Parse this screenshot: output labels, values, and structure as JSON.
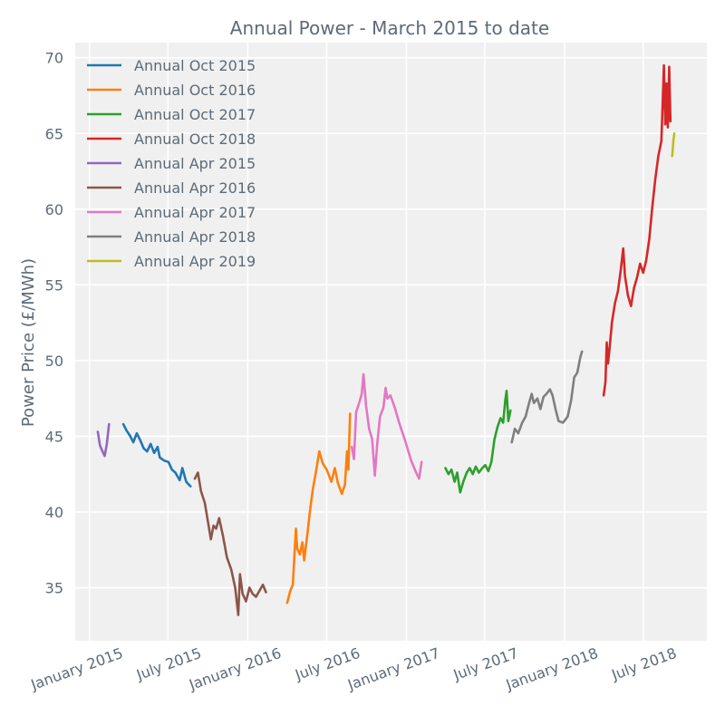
{
  "chart_data": {
    "type": "line",
    "title": "Annual Power - March 2015 to date",
    "xlabel": "",
    "ylabel": "Power Price (£/MWh)",
    "ylim": [
      31.5,
      71.0
    ],
    "xlim": [
      "2014-11-29",
      "2018-11-25"
    ],
    "grid": true,
    "legend_position": "top-left",
    "y_ticks": [
      35,
      40,
      45,
      50,
      55,
      60,
      65,
      70
    ],
    "x_ticks": [
      {
        "date": "2015-01-01",
        "label": "January 2015"
      },
      {
        "date": "2015-07-01",
        "label": "July 2015"
      },
      {
        "date": "2016-01-01",
        "label": "January 2016"
      },
      {
        "date": "2016-07-01",
        "label": "July 2016"
      },
      {
        "date": "2017-01-01",
        "label": "January 2017"
      },
      {
        "date": "2017-07-01",
        "label": "July 2017"
      },
      {
        "date": "2018-01-01",
        "label": "January 2018"
      },
      {
        "date": "2018-07-01",
        "label": "July 2018"
      }
    ],
    "series": [
      {
        "name": "Annual Oct 2015",
        "color": "#1f77b4",
        "points": [
          [
            "2015-03-20",
            45.8
          ],
          [
            "2015-03-27",
            45.4
          ],
          [
            "2015-04-05",
            45.0
          ],
          [
            "2015-04-12",
            44.6
          ],
          [
            "2015-04-20",
            45.2
          ],
          [
            "2015-04-27",
            44.8
          ],
          [
            "2015-05-06",
            44.2
          ],
          [
            "2015-05-14",
            44.0
          ],
          [
            "2015-05-22",
            44.5
          ],
          [
            "2015-05-30",
            43.9
          ],
          [
            "2015-06-07",
            44.3
          ],
          [
            "2015-06-12",
            43.6
          ],
          [
            "2015-06-22",
            43.4
          ],
          [
            "2015-07-02",
            43.3
          ],
          [
            "2015-07-10",
            42.8
          ],
          [
            "2015-07-18",
            42.6
          ],
          [
            "2015-07-28",
            42.1
          ],
          [
            "2015-08-03",
            42.9
          ],
          [
            "2015-08-12",
            42.0
          ],
          [
            "2015-08-22",
            41.7
          ]
        ]
      },
      {
        "name": "Annual Oct 2016",
        "color": "#ff7f0e",
        "points": [
          [
            "2016-04-01",
            34.0
          ],
          [
            "2016-04-08",
            34.8
          ],
          [
            "2016-04-14",
            35.2
          ],
          [
            "2016-04-21",
            38.9
          ],
          [
            "2016-04-24",
            37.6
          ],
          [
            "2016-04-30",
            37.2
          ],
          [
            "2016-05-06",
            38.0
          ],
          [
            "2016-05-10",
            36.8
          ],
          [
            "2016-05-16",
            38.2
          ],
          [
            "2016-05-24",
            40.2
          ],
          [
            "2016-05-30",
            41.5
          ],
          [
            "2016-06-06",
            42.6
          ],
          [
            "2016-06-14",
            44.0
          ],
          [
            "2016-06-22",
            43.2
          ],
          [
            "2016-07-01",
            42.8
          ],
          [
            "2016-07-12",
            42.0
          ],
          [
            "2016-07-20",
            42.9
          ],
          [
            "2016-07-27",
            41.9
          ],
          [
            "2016-08-05",
            41.2
          ],
          [
            "2016-08-12",
            41.8
          ],
          [
            "2016-08-17",
            44.0
          ],
          [
            "2016-08-20",
            42.8
          ],
          [
            "2016-08-24",
            46.5
          ]
        ]
      },
      {
        "name": "Annual Oct 2017",
        "color": "#2ca02c",
        "points": [
          [
            "2017-04-01",
            42.9
          ],
          [
            "2017-04-08",
            42.5
          ],
          [
            "2017-04-15",
            42.8
          ],
          [
            "2017-04-22",
            42.0
          ],
          [
            "2017-04-28",
            42.6
          ],
          [
            "2017-05-05",
            41.3
          ],
          [
            "2017-05-12",
            42.0
          ],
          [
            "2017-05-20",
            42.6
          ],
          [
            "2017-05-27",
            42.9
          ],
          [
            "2017-06-03",
            42.5
          ],
          [
            "2017-06-10",
            43.0
          ],
          [
            "2017-06-17",
            42.6
          ],
          [
            "2017-06-25",
            42.9
          ],
          [
            "2017-07-02",
            43.1
          ],
          [
            "2017-07-09",
            42.7
          ],
          [
            "2017-07-16",
            43.3
          ],
          [
            "2017-07-23",
            44.8
          ],
          [
            "2017-07-30",
            45.6
          ],
          [
            "2017-08-06",
            46.2
          ],
          [
            "2017-08-12",
            45.9
          ],
          [
            "2017-08-17",
            47.4
          ],
          [
            "2017-08-20",
            48.0
          ],
          [
            "2017-08-24",
            46.0
          ],
          [
            "2017-08-29",
            46.7
          ]
        ]
      },
      {
        "name": "Annual Oct 2018",
        "color": "#d62728",
        "points": [
          [
            "2018-04-01",
            47.7
          ],
          [
            "2018-04-05",
            48.6
          ],
          [
            "2018-04-08",
            51.2
          ],
          [
            "2018-04-11",
            49.8
          ],
          [
            "2018-04-15",
            50.9
          ],
          [
            "2018-04-20",
            52.5
          ],
          [
            "2018-04-27",
            53.8
          ],
          [
            "2018-05-04",
            54.6
          ],
          [
            "2018-05-10",
            55.9
          ],
          [
            "2018-05-16",
            57.4
          ],
          [
            "2018-05-20",
            55.6
          ],
          [
            "2018-05-27",
            54.3
          ],
          [
            "2018-06-03",
            53.6
          ],
          [
            "2018-06-10",
            54.8
          ],
          [
            "2018-06-17",
            55.5
          ],
          [
            "2018-06-24",
            56.4
          ],
          [
            "2018-07-01",
            55.8
          ],
          [
            "2018-07-08",
            56.6
          ],
          [
            "2018-07-15",
            58.0
          ],
          [
            "2018-07-22",
            60.1
          ],
          [
            "2018-07-29",
            62.0
          ],
          [
            "2018-08-05",
            63.5
          ],
          [
            "2018-08-12",
            64.5
          ],
          [
            "2018-08-18",
            69.5
          ],
          [
            "2018-08-21",
            65.6
          ],
          [
            "2018-08-24",
            68.3
          ],
          [
            "2018-08-27",
            65.4
          ],
          [
            "2018-08-30",
            69.4
          ],
          [
            "2018-09-02",
            65.8
          ]
        ]
      },
      {
        "name": "Annual Apr 2015",
        "color": "#9467bd",
        "points": [
          [
            "2015-01-20",
            45.3
          ],
          [
            "2015-01-25",
            44.4
          ],
          [
            "2015-01-31",
            44.0
          ],
          [
            "2015-02-05",
            43.7
          ],
          [
            "2015-02-10",
            44.5
          ],
          [
            "2015-02-15",
            45.8
          ]
        ]
      },
      {
        "name": "Annual Apr 2016",
        "color": "#8c564b",
        "points": [
          [
            "2015-09-01",
            42.2
          ],
          [
            "2015-09-08",
            42.6
          ],
          [
            "2015-09-15",
            41.4
          ],
          [
            "2015-09-24",
            40.6
          ],
          [
            "2015-10-02",
            39.2
          ],
          [
            "2015-10-08",
            38.2
          ],
          [
            "2015-10-14",
            39.1
          ],
          [
            "2015-10-20",
            38.9
          ],
          [
            "2015-10-27",
            39.6
          ],
          [
            "2015-11-05",
            38.4
          ],
          [
            "2015-11-14",
            37.0
          ],
          [
            "2015-11-24",
            36.2
          ],
          [
            "2015-12-03",
            35.0
          ],
          [
            "2015-12-10",
            33.2
          ],
          [
            "2015-12-14",
            35.9
          ],
          [
            "2015-12-20",
            34.6
          ],
          [
            "2015-12-28",
            34.1
          ],
          [
            "2016-01-05",
            35.0
          ],
          [
            "2016-01-12",
            34.6
          ],
          [
            "2016-01-20",
            34.4
          ],
          [
            "2016-01-28",
            34.8
          ],
          [
            "2016-02-05",
            35.2
          ],
          [
            "2016-02-12",
            34.7
          ]
        ]
      },
      {
        "name": "Annual Apr 2017",
        "color": "#e377c2",
        "points": [
          [
            "2016-08-28",
            44.3
          ],
          [
            "2016-09-02",
            43.5
          ],
          [
            "2016-09-07",
            46.6
          ],
          [
            "2016-09-14",
            47.2
          ],
          [
            "2016-09-20",
            47.8
          ],
          [
            "2016-09-24",
            49.1
          ],
          [
            "2016-09-30",
            47.0
          ],
          [
            "2016-10-07",
            45.5
          ],
          [
            "2016-10-14",
            44.8
          ],
          [
            "2016-10-20",
            42.4
          ],
          [
            "2016-10-26",
            44.6
          ],
          [
            "2016-11-01",
            46.3
          ],
          [
            "2016-11-09",
            46.9
          ],
          [
            "2016-11-14",
            48.2
          ],
          [
            "2016-11-18",
            47.5
          ],
          [
            "2016-11-25",
            47.7
          ],
          [
            "2016-12-05",
            46.9
          ],
          [
            "2016-12-15",
            45.9
          ],
          [
            "2016-12-28",
            44.8
          ],
          [
            "2017-01-12",
            43.4
          ],
          [
            "2017-01-22",
            42.7
          ],
          [
            "2017-01-30",
            42.2
          ],
          [
            "2017-02-05",
            43.3
          ]
        ]
      },
      {
        "name": "Annual Apr 2018",
        "color": "#7f7f7f",
        "points": [
          [
            "2017-09-01",
            44.6
          ],
          [
            "2017-09-08",
            45.5
          ],
          [
            "2017-09-16",
            45.2
          ],
          [
            "2017-09-25",
            45.9
          ],
          [
            "2017-10-03",
            46.3
          ],
          [
            "2017-10-10",
            47.1
          ],
          [
            "2017-10-17",
            47.8
          ],
          [
            "2017-10-22",
            47.2
          ],
          [
            "2017-10-30",
            47.5
          ],
          [
            "2017-11-06",
            46.8
          ],
          [
            "2017-11-13",
            47.6
          ],
          [
            "2017-11-20",
            47.8
          ],
          [
            "2017-11-28",
            48.1
          ],
          [
            "2017-12-04",
            47.7
          ],
          [
            "2017-12-11",
            46.8
          ],
          [
            "2017-12-18",
            46.0
          ],
          [
            "2017-12-28",
            45.9
          ],
          [
            "2018-01-08",
            46.3
          ],
          [
            "2018-01-16",
            47.4
          ],
          [
            "2018-01-23",
            48.9
          ],
          [
            "2018-01-30",
            49.2
          ],
          [
            "2018-02-06",
            50.2
          ],
          [
            "2018-02-10",
            50.6
          ]
        ]
      },
      {
        "name": "Annual Apr 2019",
        "color": "#bcbd22",
        "points": [
          [
            "2018-09-06",
            63.5
          ],
          [
            "2018-09-09",
            64.6
          ],
          [
            "2018-09-11",
            65.0
          ]
        ]
      }
    ]
  }
}
